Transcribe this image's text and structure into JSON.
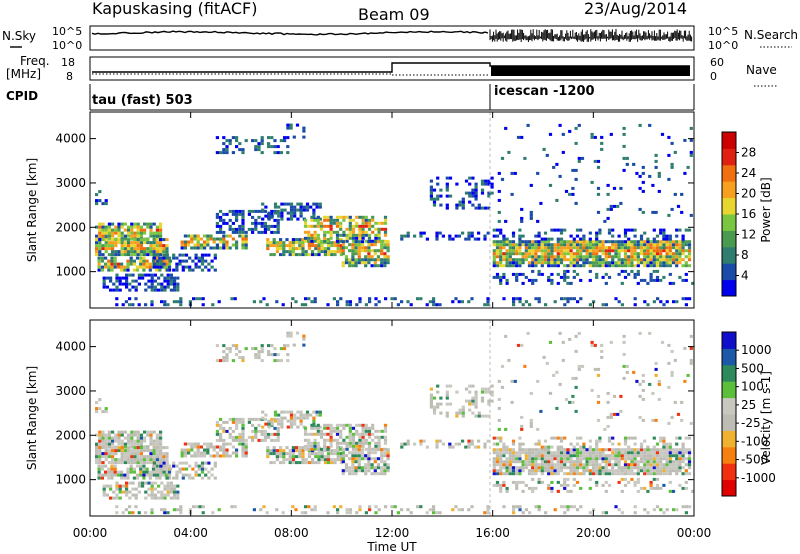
{
  "header": {
    "station": "Kapuskasing (fitACF)",
    "beam": "Beam 09",
    "date": "23/Aug/2014"
  },
  "noise_panel": {
    "left_label": "N.Sky",
    "right_label": "N.Search",
    "left_ticks": [
      "10^5",
      "10^0"
    ],
    "right_ticks": [
      "10^5",
      "10^0"
    ]
  },
  "freq_panel": {
    "left_label_1": "Freq.",
    "left_label_2": "[MHz]",
    "right_label": "Nave",
    "left_ticks": [
      "18",
      "8"
    ],
    "right_ticks": [
      "60",
      "0"
    ]
  },
  "cpid_panel": {
    "label": "CPID",
    "programs": [
      "tau (fast) 503",
      "icescan -1200"
    ]
  },
  "colors": {
    "power": [
      "#0000ee",
      "#1a4ba8",
      "#2e7d6e",
      "#4a9a50",
      "#7ac640",
      "#e8d630",
      "#f7a020",
      "#f07010",
      "#e02010",
      "#cc0000"
    ],
    "velocity": [
      "#e00000",
      "#f03010",
      "#f58010",
      "#f0b030",
      "#bdbdb5",
      "#c8c8c0",
      "#5cbf3c",
      "#2e8a5a",
      "#1c5aa8",
      "#1010cc"
    ]
  },
  "chart_data": [
    {
      "type": "heatmap",
      "name": "power",
      "ylabel": "Slant Range [km]",
      "colorbar_label": "Power [dB]",
      "colorbar_ticks": [
        "4",
        "8",
        "12",
        "16",
        "20",
        "24",
        "28"
      ],
      "x_range_hours": [
        0,
        24
      ],
      "ylim": [
        180,
        4600
      ],
      "yticks": [
        "1000",
        "2000",
        "3000",
        "4000"
      ]
    },
    {
      "type": "heatmap",
      "name": "velocity",
      "ylabel": "Slant Range [km]",
      "colorbar_label": "Velocity [m s-1]",
      "colorbar_ticks": [
        "1000",
        "500",
        "100",
        "25",
        "-25",
        "-100",
        "-500",
        "-1000"
      ],
      "x_range_hours": [
        0,
        24
      ],
      "ylim": [
        180,
        4600
      ],
      "yticks": [
        "1000",
        "2000",
        "3000",
        "4000"
      ]
    }
  ],
  "x_axis": {
    "label": "Time UT",
    "ticks": [
      "00:00",
      "04:00",
      "08:00",
      "12:00",
      "16:00",
      "20:00",
      "00:00"
    ]
  }
}
